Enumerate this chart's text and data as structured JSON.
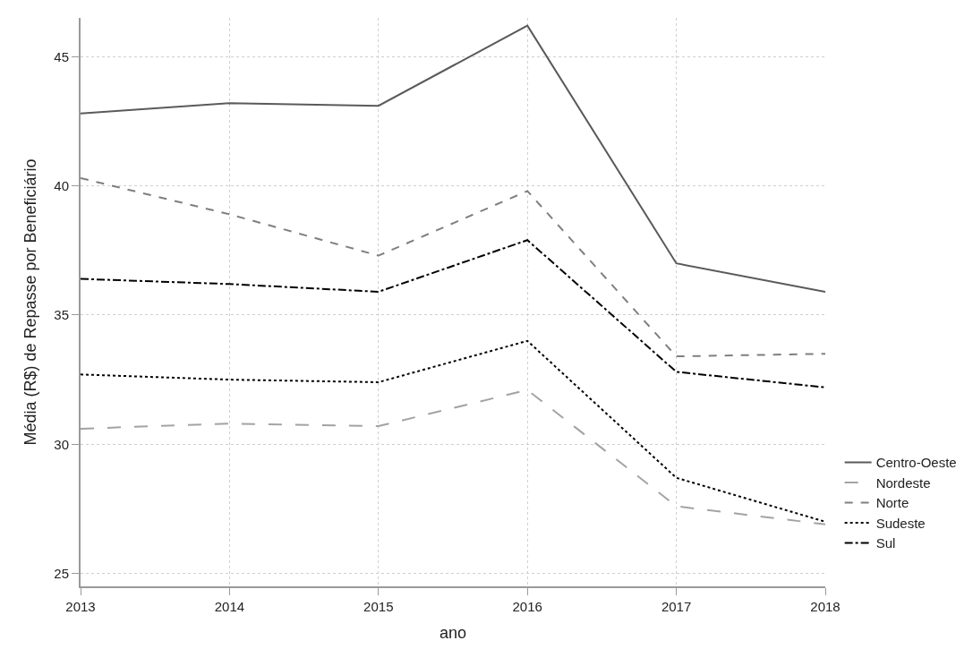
{
  "chart_data": {
    "type": "line",
    "xlabel": "ano",
    "ylabel": "Média (R$) de Repasse por Beneficiário",
    "x": [
      2013,
      2014,
      2015,
      2016,
      2017,
      2018
    ],
    "series": [
      {
        "name": "Centro-Oeste",
        "color": "#5a5a5a",
        "line_style": "solid",
        "values": [
          42.8,
          43.2,
          43.1,
          46.2,
          37.0,
          35.9
        ]
      },
      {
        "name": "Nordeste",
        "color": "#a3a3a3",
        "line_style": "longdash",
        "values": [
          30.6,
          30.8,
          30.7,
          32.1,
          27.6,
          26.9
        ]
      },
      {
        "name": "Norte",
        "color": "#7f7f7f",
        "line_style": "dashed",
        "values": [
          40.3,
          38.9,
          37.3,
          39.8,
          33.4,
          33.5
        ]
      },
      {
        "name": "Sudeste",
        "color": "#000000",
        "line_style": "dotted",
        "values": [
          32.7,
          32.5,
          32.4,
          34.0,
          28.7,
          27.0
        ]
      },
      {
        "name": "Sul",
        "color": "#000000",
        "line_style": "dashdot",
        "values": [
          36.4,
          36.2,
          35.9,
          37.9,
          32.8,
          32.2
        ]
      }
    ],
    "xlim": [
      2013,
      2018
    ],
    "xticks": [
      2013,
      2014,
      2015,
      2016,
      2017,
      2018
    ],
    "ylim": [
      24.5,
      46.5
    ],
    "yticks": [
      25,
      30,
      35,
      40,
      45
    ],
    "grid": true,
    "legend": "right",
    "marker": "none"
  }
}
